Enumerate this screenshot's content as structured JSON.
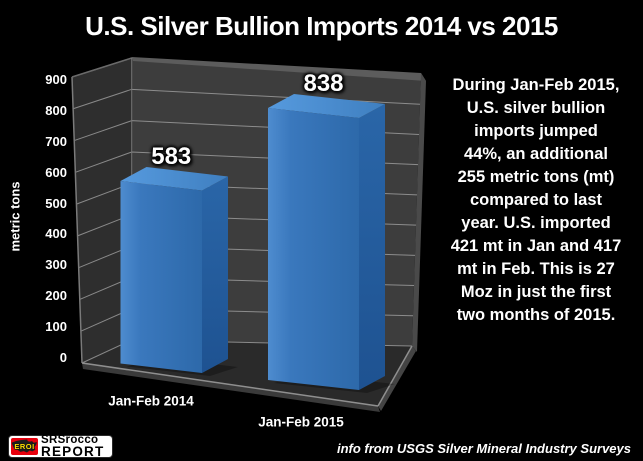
{
  "page": {
    "background": "#000000"
  },
  "chart_data": {
    "type": "bar",
    "style": "3d-column",
    "title": "U.S. Silver Bullion Imports 2014 vs 2015",
    "categories": [
      "Jan-Feb 2014",
      "Jan-Feb 2015"
    ],
    "values": [
      583,
      838
    ],
    "data_labels": [
      "583",
      "838"
    ],
    "xlabel": "",
    "ylabel": "metric tons",
    "ylim": [
      0,
      900
    ],
    "yticks": [
      0,
      100,
      200,
      300,
      400,
      500,
      600,
      700,
      800,
      900
    ],
    "grid": true,
    "legend": false
  },
  "annotation": {
    "lines": [
      "During Jan-Feb 2015,",
      "U.S. silver bullion",
      "imports  jumped",
      "44%, an additional",
      "255 metric tons (mt)",
      "compared to last",
      "year.  U.S. imported",
      "421 mt in Jan and 417",
      "mt in Feb.  This is 27",
      "Moz in just the first",
      "two months of 2015."
    ]
  },
  "footer": {
    "source_note": "info from USGS Silver Mineral Industry Surveys",
    "logo": {
      "badge": "EROI",
      "line1": "SRSrocco",
      "line2": "REPORT"
    }
  },
  "colors": {
    "background": "#000000",
    "text": "#ffffff",
    "bar_front_light": "#4e8ccf",
    "bar_front": "#3a78bd",
    "bar_front_dark": "#2d69aa",
    "bar_top_light": "#569ade",
    "bar_top_dark": "#3f7fc0",
    "bar_side_light": "#2a66a8",
    "bar_side_dark": "#1e5291",
    "wall_back": "#3d3d3d",
    "wall_left": "#2e2e2e",
    "floor": "#2a2a2a",
    "gridline": "#a0a0a0",
    "edge_light": "#8f8f8f",
    "logo_red": "#e8000d",
    "logo_yellow": "#ffdf00"
  }
}
